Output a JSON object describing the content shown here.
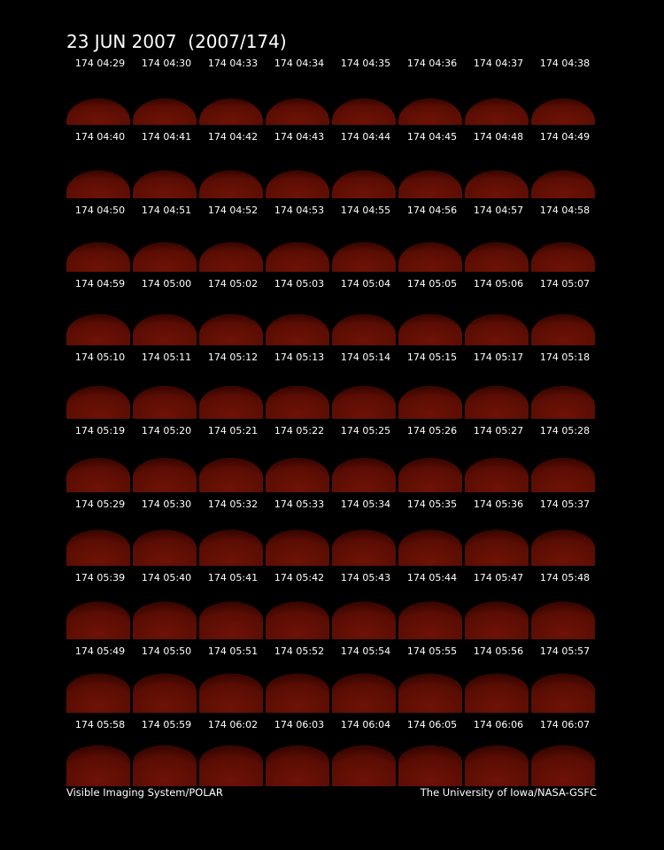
{
  "header": {
    "title": "23 JUN 2007  (2007/174)"
  },
  "frames": [
    [
      "174 04:29",
      "174 04:30",
      "174 04:33",
      "174 04:34",
      "174 04:35",
      "174 04:36",
      "174 04:37",
      "174 04:38"
    ],
    [
      "174 04:40",
      "174 04:41",
      "174 04:42",
      "174 04:43",
      "174 04:44",
      "174 04:45",
      "174 04:48",
      "174 04:49"
    ],
    [
      "174 04:50",
      "174 04:51",
      "174 04:52",
      "174 04:53",
      "174 04:55",
      "174 04:56",
      "174 04:57",
      "174 04:58"
    ],
    [
      "174 04:59",
      "174 05:00",
      "174 05:02",
      "174 05:03",
      "174 05:04",
      "174 05:05",
      "174 05:06",
      "174 05:07"
    ],
    [
      "174 05:10",
      "174 05:11",
      "174 05:12",
      "174 05:13",
      "174 05:14",
      "174 05:15",
      "174 05:17",
      "174 05:18"
    ],
    [
      "174 05:19",
      "174 05:20",
      "174 05:21",
      "174 05:22",
      "174 05:25",
      "174 05:26",
      "174 05:27",
      "174 05:28"
    ],
    [
      "174 05:29",
      "174 05:30",
      "174 05:32",
      "174 05:33",
      "174 05:34",
      "174 05:35",
      "174 05:36",
      "174 05:37"
    ],
    [
      "174 05:39",
      "174 05:40",
      "174 05:41",
      "174 05:42",
      "174 05:43",
      "174 05:44",
      "174 05:47",
      "174 05:48"
    ],
    [
      "174 05:49",
      "174 05:50",
      "174 05:51",
      "174 05:52",
      "174 05:54",
      "174 05:55",
      "174 05:56",
      "174 05:57"
    ],
    [
      "174 05:58",
      "174 05:59",
      "174 06:02",
      "174 06:03",
      "174 06:04",
      "174 06:05",
      "174 06:06",
      "174 06:07"
    ]
  ],
  "footer": {
    "left": "Visible Imaging System/POLAR",
    "right": "The University of Iowa/NASA-GSFC"
  }
}
